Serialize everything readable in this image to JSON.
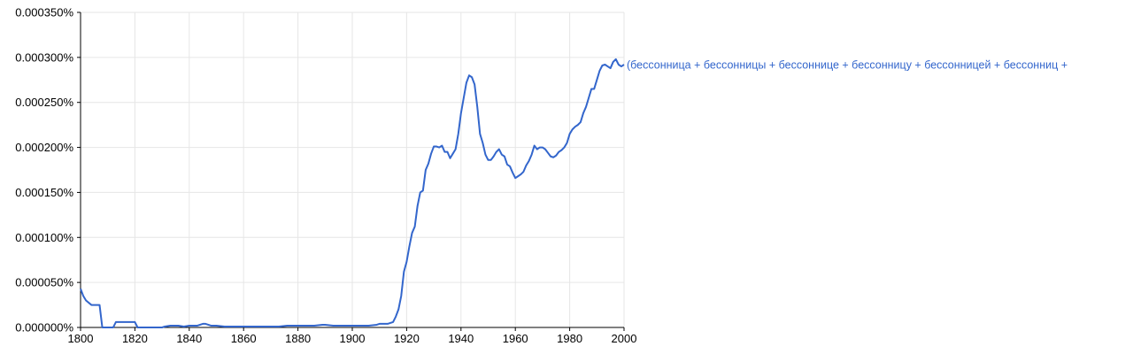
{
  "chart_data": {
    "type": "line",
    "title": "",
    "xlabel": "",
    "ylabel": "",
    "xlim": [
      1800,
      2000
    ],
    "ylim": [
      0,
      0.00035
    ],
    "grid": true,
    "legend_placement": "right of line end",
    "x_ticks": [
      "1800",
      "1820",
      "1840",
      "1860",
      "1880",
      "1900",
      "1920",
      "1940",
      "1960",
      "1980",
      "2000"
    ],
    "y_ticks": [
      "0.000000%",
      "0.000050%",
      "0.000100%",
      "0.000150%",
      "0.000200%",
      "0.000250%",
      "0.000300%",
      "0.000350%"
    ],
    "series": [
      {
        "name": "(бессонница + бессонницы + бессоннице + бессонницу + бессонницей + бессонниц +",
        "color": "#3366cc",
        "x": [
          1800,
          1801,
          1802,
          1804,
          1806,
          1807,
          1808,
          1812,
          1813,
          1820,
          1821,
          1830,
          1831,
          1833,
          1836,
          1838,
          1840,
          1843,
          1845,
          1846,
          1848,
          1850,
          1853,
          1856,
          1860,
          1863,
          1866,
          1870,
          1873,
          1876,
          1880,
          1883,
          1886,
          1889,
          1890,
          1893,
          1896,
          1899,
          1900,
          1903,
          1906,
          1909,
          1910,
          1913,
          1915,
          1916,
          1917,
          1918,
          1919,
          1920,
          1921,
          1922,
          1923,
          1924,
          1925,
          1926,
          1927,
          1928,
          1929,
          1930,
          1931,
          1932,
          1933,
          1934,
          1935,
          1936,
          1937,
          1938,
          1939,
          1940,
          1941,
          1942,
          1943,
          1944,
          1945,
          1946,
          1947,
          1948,
          1949,
          1950,
          1951,
          1952,
          1953,
          1954,
          1955,
          1956,
          1957,
          1958,
          1959,
          1960,
          1961,
          1962,
          1963,
          1964,
          1965,
          1966,
          1967,
          1968,
          1969,
          1970,
          1971,
          1972,
          1973,
          1974,
          1975,
          1976,
          1977,
          1978,
          1979,
          1980,
          1981,
          1982,
          1983,
          1984,
          1985,
          1986,
          1987,
          1988,
          1989,
          1990,
          1991,
          1992,
          1993,
          1994,
          1995,
          1996,
          1997,
          1998,
          1999,
          2000
        ],
        "y": [
          4.3e-05,
          3.5e-05,
          3e-05,
          2.5e-05,
          2.5e-05,
          2.5e-05,
          0.0,
          0.0,
          6e-06,
          6e-06,
          0.0,
          0.0,
          1e-06,
          2e-06,
          2e-06,
          1e-06,
          2e-06,
          2e-06,
          4e-06,
          4e-06,
          2e-06,
          2e-06,
          1e-06,
          1e-06,
          1e-06,
          1e-06,
          1e-06,
          1e-06,
          1e-06,
          2e-06,
          2e-06,
          2e-06,
          2e-06,
          3e-06,
          3e-06,
          2e-06,
          2e-06,
          2e-06,
          2e-06,
          2e-06,
          2e-06,
          3e-06,
          4e-06,
          4e-06,
          6e-06,
          1.2e-05,
          2e-05,
          3.5e-05,
          6.2e-05,
          7.3e-05,
          9e-05,
          0.000105,
          0.000112,
          0.000135,
          0.00015,
          0.000152,
          0.000175,
          0.000182,
          0.000193,
          0.000201,
          0.000201,
          0.0002,
          0.000202,
          0.000195,
          0.000195,
          0.000188,
          0.000193,
          0.000198,
          0.000215,
          0.000238,
          0.000255,
          0.000272,
          0.00028,
          0.000278,
          0.00027,
          0.000245,
          0.000215,
          0.000205,
          0.000192,
          0.000186,
          0.000186,
          0.00019,
          0.000195,
          0.000198,
          0.000192,
          0.00019,
          0.000181,
          0.000179,
          0.000172,
          0.000166,
          0.000168,
          0.00017,
          0.000173,
          0.00018,
          0.000185,
          0.000192,
          0.000202,
          0.000198,
          0.0002,
          0.0002,
          0.000198,
          0.000194,
          0.00019,
          0.000189,
          0.000191,
          0.000195,
          0.000197,
          0.0002,
          0.000205,
          0.000215,
          0.00022,
          0.000223,
          0.000225,
          0.000228,
          0.000238,
          0.000245,
          0.000255,
          0.000265,
          0.000265,
          0.000275,
          0.000285,
          0.000291,
          0.000292,
          0.00029,
          0.000288,
          0.000295,
          0.000298,
          0.000292,
          0.00029,
          0.000292
        ]
      }
    ]
  }
}
